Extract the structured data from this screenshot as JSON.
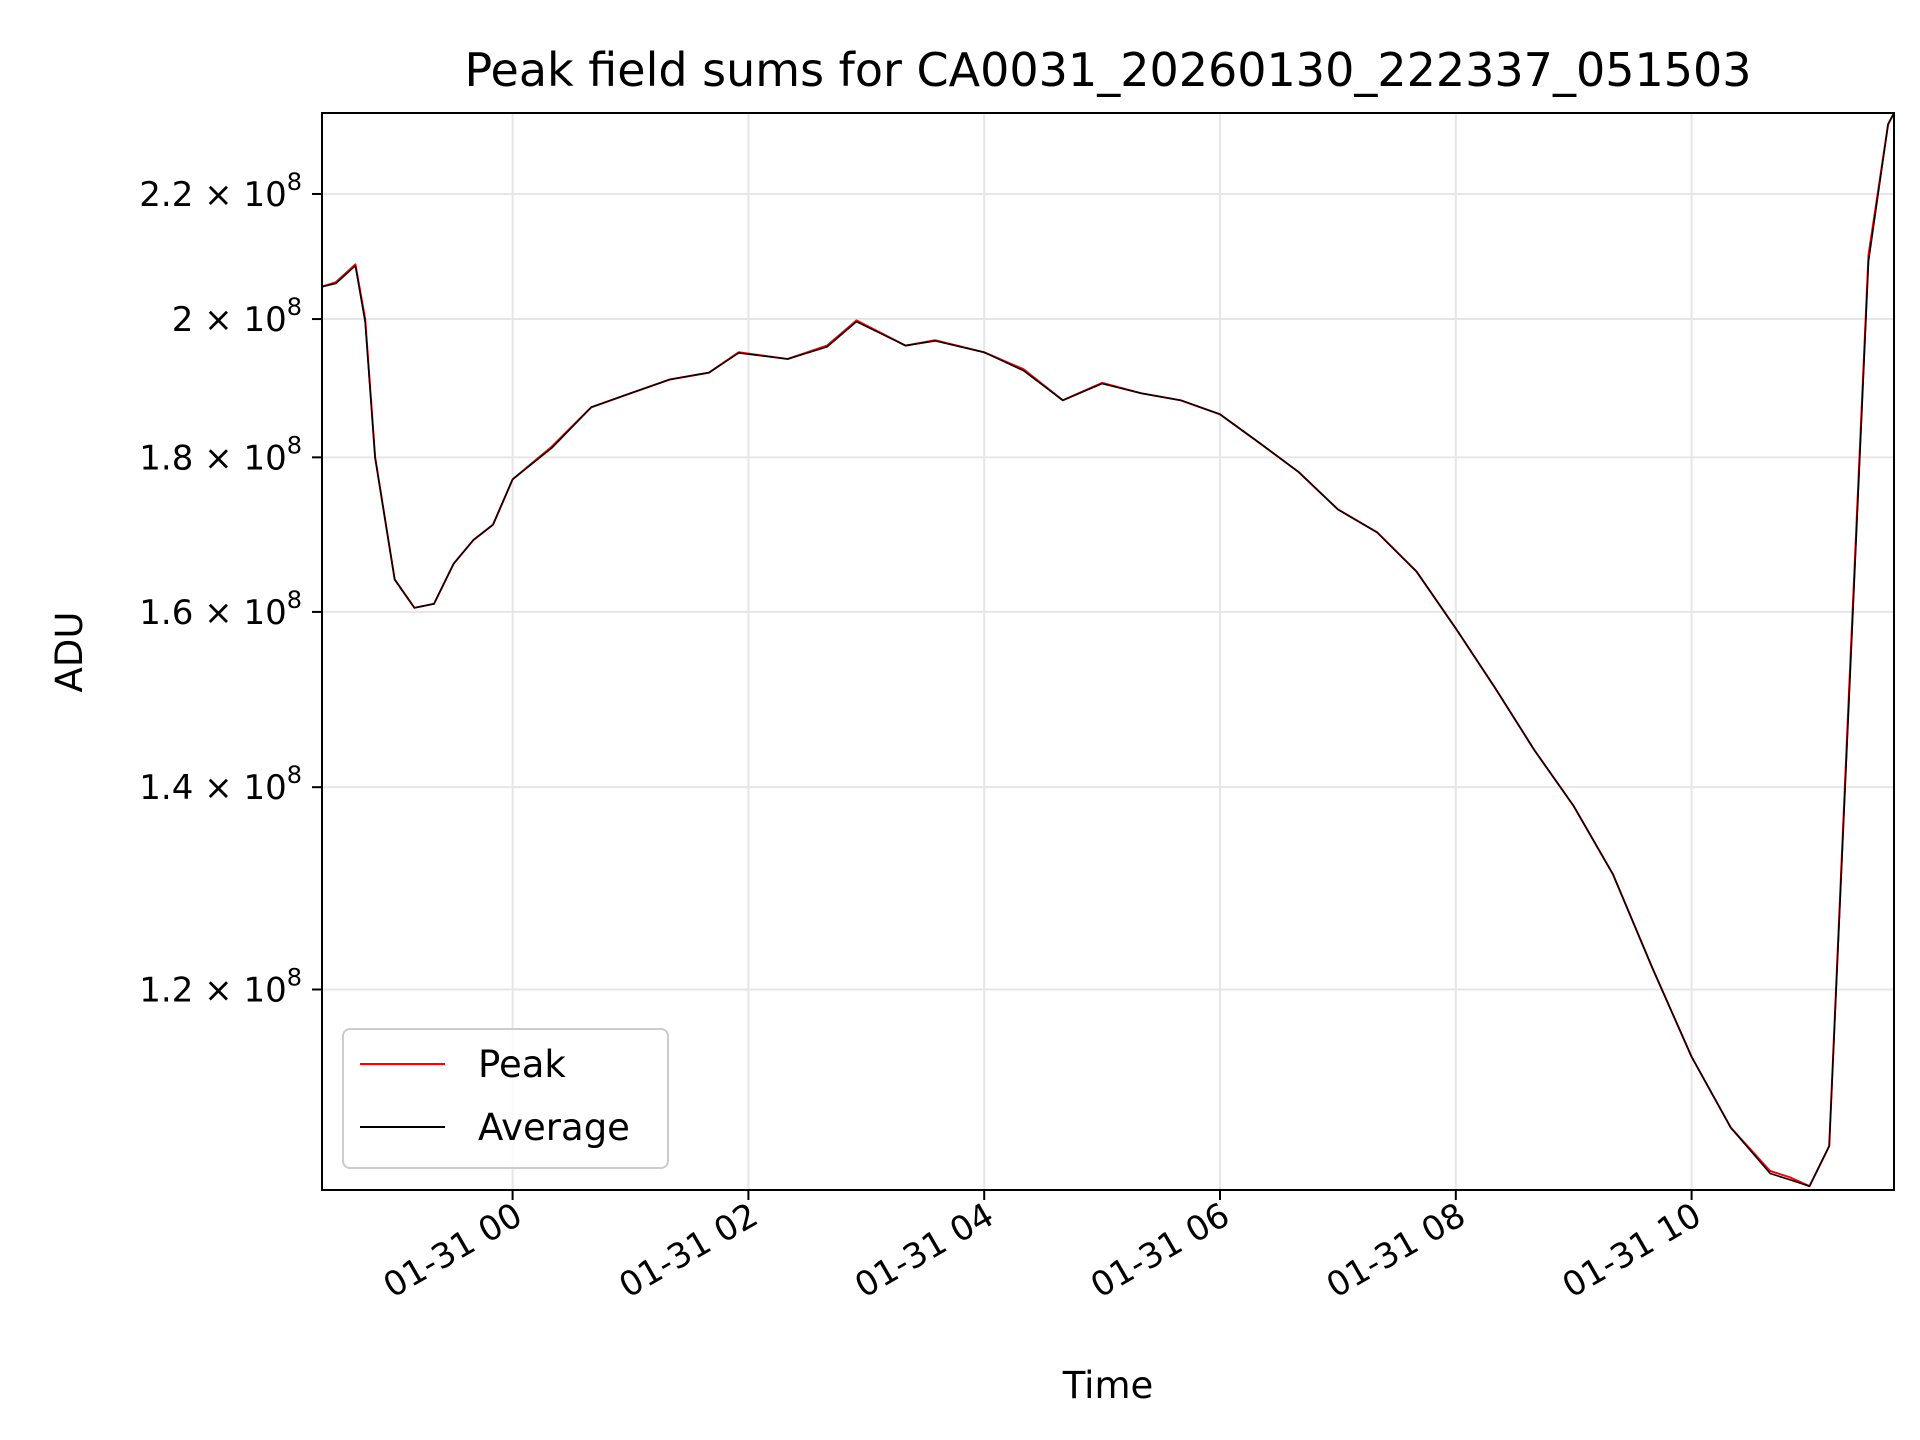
{
  "chart_data": {
    "type": "line",
    "title": "Peak field sums for CA0031_20260130_222337_051503",
    "xlabel": "Time",
    "ylabel": "ADU",
    "y_scale": "log",
    "grid": true,
    "legend_position": "lower-left",
    "xlim": [
      "2026-01-30 22:23",
      "2026-01-31 11:43"
    ],
    "ylim": [
      103000000,
      234000000
    ],
    "x_ticks": [
      {
        "value": "2026-01-31 00:00",
        "label": "01-31 00"
      },
      {
        "value": "2026-01-31 02:00",
        "label": "01-31 02"
      },
      {
        "value": "2026-01-31 04:00",
        "label": "01-31 04"
      },
      {
        "value": "2026-01-31 06:00",
        "label": "01-31 06"
      },
      {
        "value": "2026-01-31 08:00",
        "label": "01-31 08"
      },
      {
        "value": "2026-01-31 10:00",
        "label": "01-31 10"
      }
    ],
    "y_ticks": [
      {
        "value": 120000000,
        "mantissa": "1.2",
        "exp": "8"
      },
      {
        "value": 140000000,
        "mantissa": "1.4",
        "exp": "8"
      },
      {
        "value": 160000000,
        "mantissa": "1.6",
        "exp": "8"
      },
      {
        "value": 180000000,
        "mantissa": "1.8",
        "exp": "8"
      },
      {
        "value": 200000000,
        "mantissa": "2",
        "exp": "8"
      },
      {
        "value": 220000000,
        "mantissa": "2.2",
        "exp": "8"
      }
    ],
    "x": [
      "2026-01-30 22:23",
      "2026-01-30 22:30",
      "2026-01-30 22:40",
      "2026-01-30 22:45",
      "2026-01-30 22:50",
      "2026-01-30 23:00",
      "2026-01-30 23:10",
      "2026-01-30 23:20",
      "2026-01-30 23:30",
      "2026-01-30 23:40",
      "2026-01-30 23:50",
      "2026-01-31 00:00",
      "2026-01-31 00:20",
      "2026-01-31 00:40",
      "2026-01-31 01:00",
      "2026-01-31 01:20",
      "2026-01-31 01:40",
      "2026-01-31 01:55",
      "2026-01-31 02:20",
      "2026-01-31 02:40",
      "2026-01-31 02:55",
      "2026-01-31 03:20",
      "2026-01-31 03:35",
      "2026-01-31 04:00",
      "2026-01-31 04:20",
      "2026-01-31 04:40",
      "2026-01-31 05:00",
      "2026-01-31 05:20",
      "2026-01-31 05:40",
      "2026-01-31 06:00",
      "2026-01-31 06:20",
      "2026-01-31 06:40",
      "2026-01-31 07:00",
      "2026-01-31 07:20",
      "2026-01-31 07:40",
      "2026-01-31 08:00",
      "2026-01-31 08:20",
      "2026-01-31 08:40",
      "2026-01-31 09:00",
      "2026-01-31 09:20",
      "2026-01-31 09:40",
      "2026-01-31 10:00",
      "2026-01-31 10:20",
      "2026-01-31 10:40",
      "2026-01-31 10:50",
      "2026-01-31 11:00",
      "2026-01-31 11:10",
      "2026-01-31 11:20",
      "2026-01-31 11:30",
      "2026-01-31 11:40",
      "2026-01-31 11:43"
    ],
    "series": [
      {
        "name": "Peak",
        "color": "#ff0000",
        "values": [
          205000000,
          205700000,
          208500000,
          200000000,
          180000000,
          164000000,
          160500000,
          161000000,
          166000000,
          169000000,
          171000000,
          177000000,
          181500000,
          187000000,
          189000000,
          191000000,
          192000000,
          195000000,
          194000000,
          196000000,
          199800000,
          196000000,
          196800000,
          195000000,
          192500000,
          188000000,
          190500000,
          189000000,
          188000000,
          186000000,
          182000000,
          178000000,
          173000000,
          170000000,
          165000000,
          158000000,
          151000000,
          144000000,
          138000000,
          131000000,
          122000000,
          114000000,
          108000000,
          104500000,
          104000000,
          103300000,
          106500000,
          150000000,
          210000000,
          232000000,
          234000000
        ]
      },
      {
        "name": "Average",
        "color": "#000000",
        "values": [
          205000000,
          205500000,
          208300000,
          199500000,
          180000000,
          164000000,
          160500000,
          161000000,
          166000000,
          169000000,
          171000000,
          177000000,
          181300000,
          187000000,
          189000000,
          191000000,
          192000000,
          194900000,
          194000000,
          195800000,
          199600000,
          196000000,
          196700000,
          195000000,
          192300000,
          188000000,
          190400000,
          189000000,
          188000000,
          186000000,
          182000000,
          178000000,
          173000000,
          170000000,
          165000000,
          158000000,
          151000000,
          144000000,
          138000000,
          131000000,
          122000000,
          114000000,
          108000000,
          104300000,
          103800000,
          103300000,
          106500000,
          149000000,
          209000000,
          232000000,
          234000000
        ]
      }
    ]
  }
}
